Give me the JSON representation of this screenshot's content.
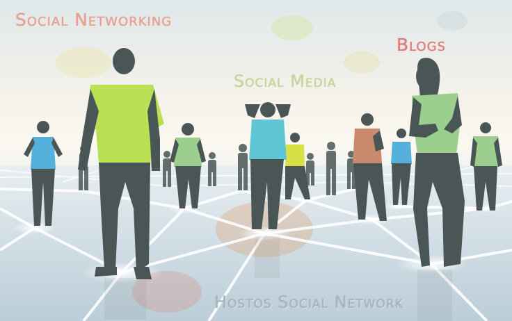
{
  "labels": {
    "social_networking": "Social Networking",
    "blogs": "Blogs",
    "social_media": "Social Media",
    "hostos": "Hostos Social Network"
  },
  "colors": {
    "silhouette": "#4a5656",
    "shirt_green": "#b9df52",
    "shirt_cyan": "#5fc6d4",
    "shirt_blue": "#55b0dc",
    "shirt_yellow": "#d8e046",
    "shirt_rust": "#c98a6e",
    "shirt_pale_green": "#9ccf8e",
    "network_line": "#ffffff"
  }
}
